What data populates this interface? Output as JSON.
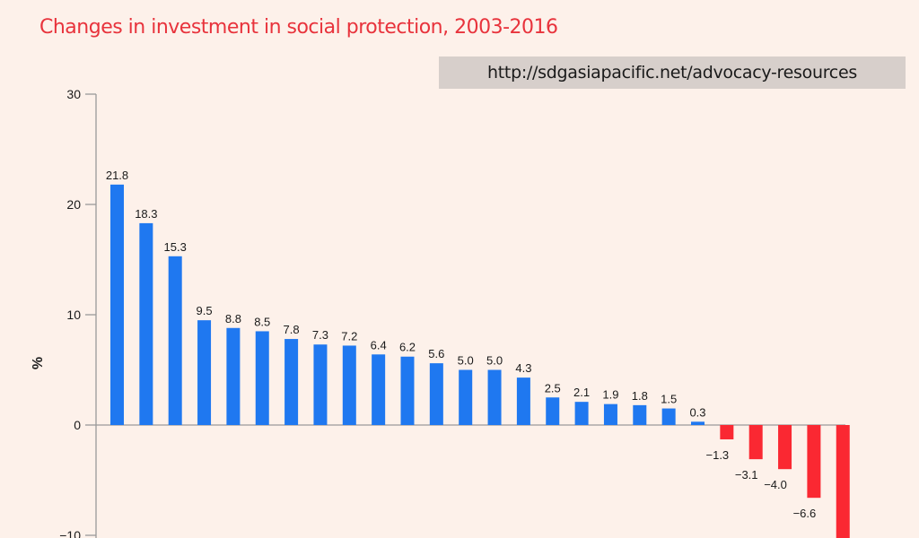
{
  "source_url": "http://sdgasiapacific.net/advocacy-resources",
  "colors": {
    "background": "#fdf1ea",
    "positive": "#1f78f0",
    "negative": "#fa2832",
    "title": "#e8333c",
    "axis": "#9a9a9a"
  },
  "chart_data": {
    "type": "bar",
    "title": "Changes in investment in social protection, 2003-2016",
    "xlabel": "",
    "ylabel": "%",
    "ylim": [
      -10,
      30
    ],
    "yticks": [
      30,
      20,
      10,
      0,
      -10
    ],
    "ytick_labels": [
      "30",
      "20",
      "10",
      "0",
      "−10"
    ],
    "grid": false,
    "categories": [],
    "values": [
      21.8,
      18.3,
      15.3,
      9.5,
      8.8,
      8.5,
      7.8,
      7.3,
      7.2,
      6.4,
      6.2,
      5.6,
      5.0,
      5.0,
      4.3,
      2.5,
      2.1,
      1.9,
      1.8,
      1.5,
      0.3,
      -1.3,
      -3.1,
      -4.0,
      -6.6,
      null
    ],
    "data_labels": [
      "21.8",
      "18.3",
      "15.3",
      "9.5",
      "8.8",
      "8.5",
      "7.8",
      "7.3",
      "7.2",
      "6.4",
      "6.2",
      "5.6",
      "5.0",
      "5.0",
      "4.3",
      "2.5",
      "2.1",
      "1.9",
      "1.8",
      "1.5",
      "0.3",
      "−1.3",
      "−3.1",
      "−4.0",
      "−6.6",
      ""
    ],
    "notes": "Last bar extends below the visible -10 limit; its label is not visible."
  }
}
